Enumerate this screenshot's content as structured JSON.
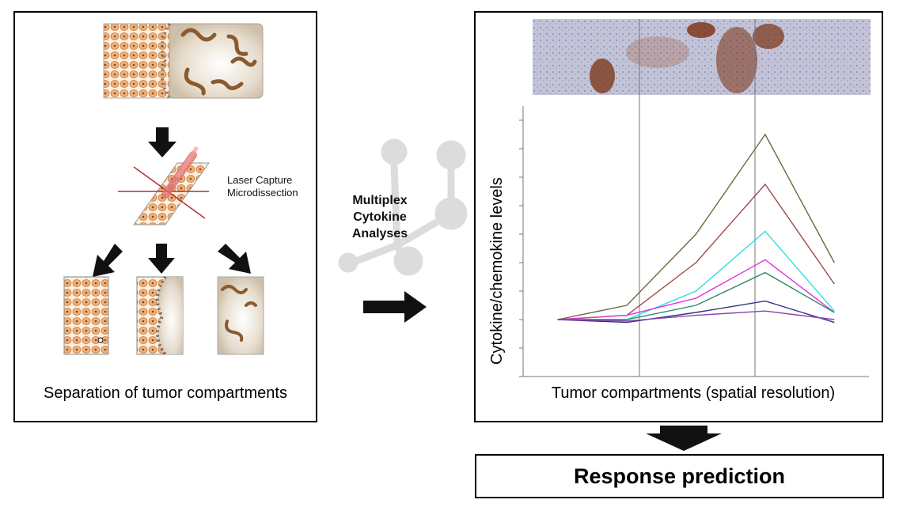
{
  "left_panel": {
    "caption": "Separation of tumor compartments",
    "lcm_label_line1": "Laser Capture",
    "lcm_label_line2": "Microdissection"
  },
  "middle": {
    "line1": "Multiplex",
    "line2": "Cytokine",
    "line3": "Analyses"
  },
  "right_panel": {
    "y_label": "Cytokine/chemokine levels",
    "x_label": "Tumor compartments (spatial resolution)"
  },
  "response": {
    "label": "Response prediction"
  },
  "colors": {
    "tumor_cell": "#f0b07a",
    "stroma_worm": "#8a5a2e",
    "histology_bg": "#b9b9d2",
    "stain": "#7a3010"
  },
  "chart_data": {
    "type": "line",
    "x": [
      1,
      2,
      3,
      4,
      5
    ],
    "series": [
      {
        "color": "#6b6b3e",
        "values": [
          1.0,
          1.1,
          1.6,
          2.3,
          1.4
        ]
      },
      {
        "color": "#a04a4a",
        "values": [
          1.0,
          1.03,
          1.4,
          1.95,
          1.25
        ]
      },
      {
        "color": "#33dddd",
        "values": [
          1.0,
          1.0,
          1.2,
          1.62,
          1.06
        ]
      },
      {
        "color": "#dd33dd",
        "values": [
          1.0,
          1.03,
          1.15,
          1.42,
          1.05
        ]
      },
      {
        "color": "#2e8a6e",
        "values": [
          1.0,
          1.0,
          1.1,
          1.33,
          1.05
        ]
      },
      {
        "color": "#333380",
        "values": [
          1.0,
          0.98,
          1.05,
          1.13,
          0.98
        ]
      },
      {
        "color": "#8844aa",
        "values": [
          1.0,
          0.99,
          1.03,
          1.06,
          1.0
        ]
      }
    ],
    "ylim": [
      0.6,
      2.5
    ],
    "xlim": [
      0.5,
      5.5
    ],
    "grid": false
  }
}
